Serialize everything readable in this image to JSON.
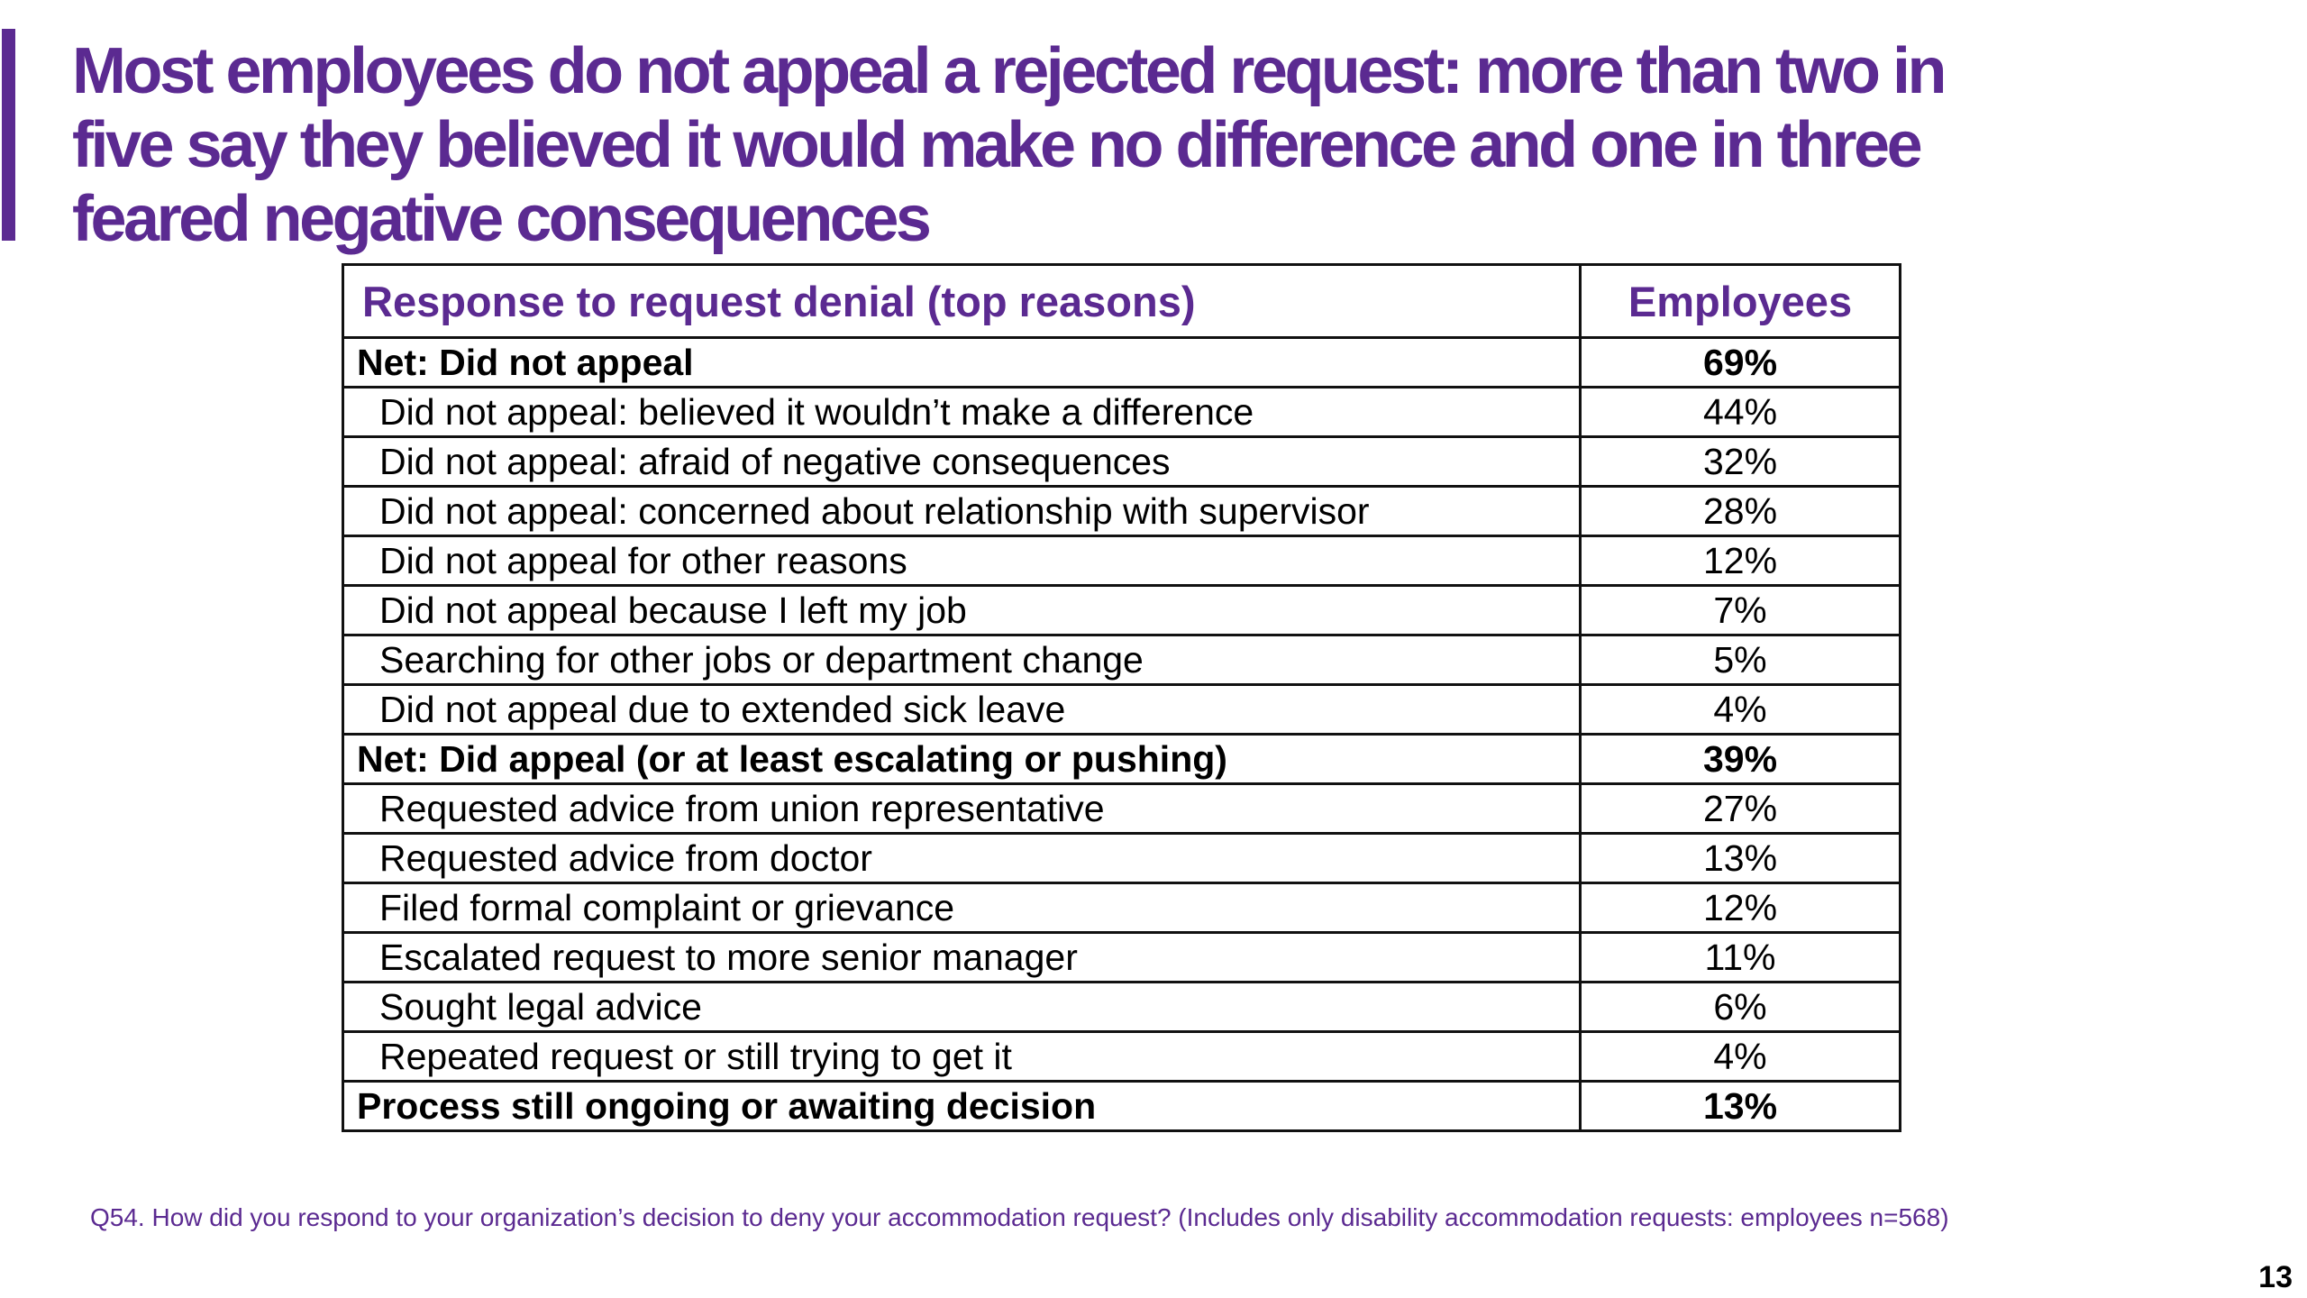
{
  "title_lines": [
    "Most  employees do not appeal a rejected request: more than two in",
    "five say they believed it would make no difference and one in three",
    "feared negative consequences"
  ],
  "table": {
    "header": {
      "response": "Response to request denial (top reasons)",
      "employees": "Employees"
    },
    "rows": [
      {
        "label": "Net: Did not appeal",
        "value": "69%",
        "bold": true
      },
      {
        "label": "Did not appeal: believed it wouldn’t make a difference",
        "value": "44%",
        "bold": false
      },
      {
        "label": "Did not appeal: afraid of negative consequences",
        "value": "32%",
        "bold": false
      },
      {
        "label": "Did not appeal: concerned about relationship with supervisor",
        "value": "28%",
        "bold": false
      },
      {
        "label": "Did not appeal for other reasons",
        "value": "12%",
        "bold": false
      },
      {
        "label": "Did not appeal because I left my job",
        "value": "7%",
        "bold": false
      },
      {
        "label": "Searching for other jobs or department change",
        "value": "5%",
        "bold": false
      },
      {
        "label": "Did not appeal due to extended sick leave",
        "value": "4%",
        "bold": false
      },
      {
        "label": "Net: Did appeal (or at least escalating or pushing)",
        "value": "39%",
        "bold": true
      },
      {
        "label": "Requested advice from union representative",
        "value": "27%",
        "bold": false
      },
      {
        "label": "Requested advice from doctor",
        "value": "13%",
        "bold": false
      },
      {
        "label": "Filed formal complaint or grievance",
        "value": "12%",
        "bold": false
      },
      {
        "label": "Escalated request to more senior manager",
        "value": "11%",
        "bold": false
      },
      {
        "label": "Sought legal advice",
        "value": "6%",
        "bold": false
      },
      {
        "label": "Repeated request or still trying to get it",
        "value": "4%",
        "bold": false
      },
      {
        "label": "Process still ongoing or awaiting decision",
        "value": "13%",
        "bold": true
      }
    ]
  },
  "footnote": "Q54. How did you respond to your organization’s decision to deny your accommodation request? (Includes only disability accommodation requests: employees n=568)",
  "page_number": "13",
  "colors": {
    "accent": "#5b2a91",
    "text": "#000000",
    "border": "#111111"
  }
}
